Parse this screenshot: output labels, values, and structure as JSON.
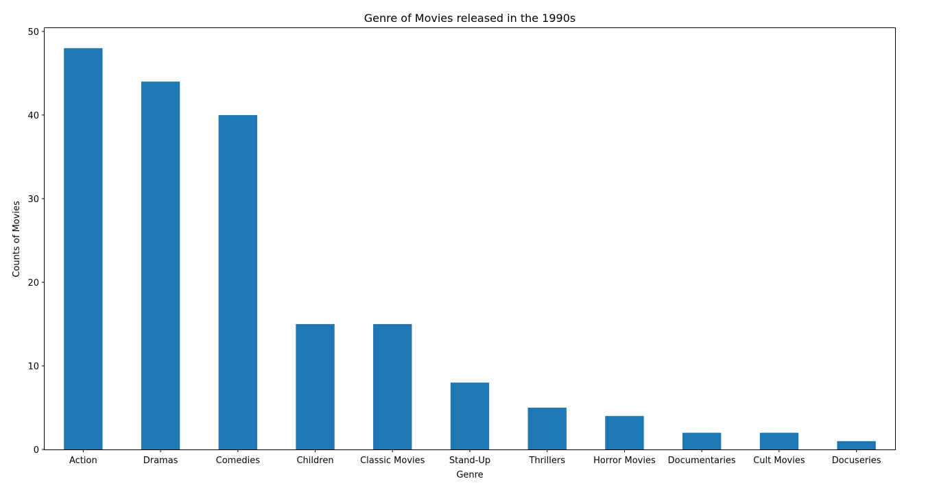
{
  "chart_data": {
    "type": "bar",
    "title": "Genre of Movies released in the 1990s",
    "xlabel": "Genre",
    "ylabel": "Counts of Movies",
    "categories": [
      "Action",
      "Dramas",
      "Comedies",
      "Children",
      "Classic Movies",
      "Stand-Up",
      "Thrillers",
      "Horror Movies",
      "Documentaries",
      "Cult Movies",
      "Docuseries"
    ],
    "values": [
      48,
      44,
      40,
      15,
      15,
      8,
      5,
      4,
      2,
      2,
      1
    ],
    "ylim": [
      0,
      50.4
    ],
    "yticks": [
      0,
      10,
      20,
      30,
      40,
      50
    ],
    "grid": false,
    "bar_color": "#1f77b4"
  }
}
